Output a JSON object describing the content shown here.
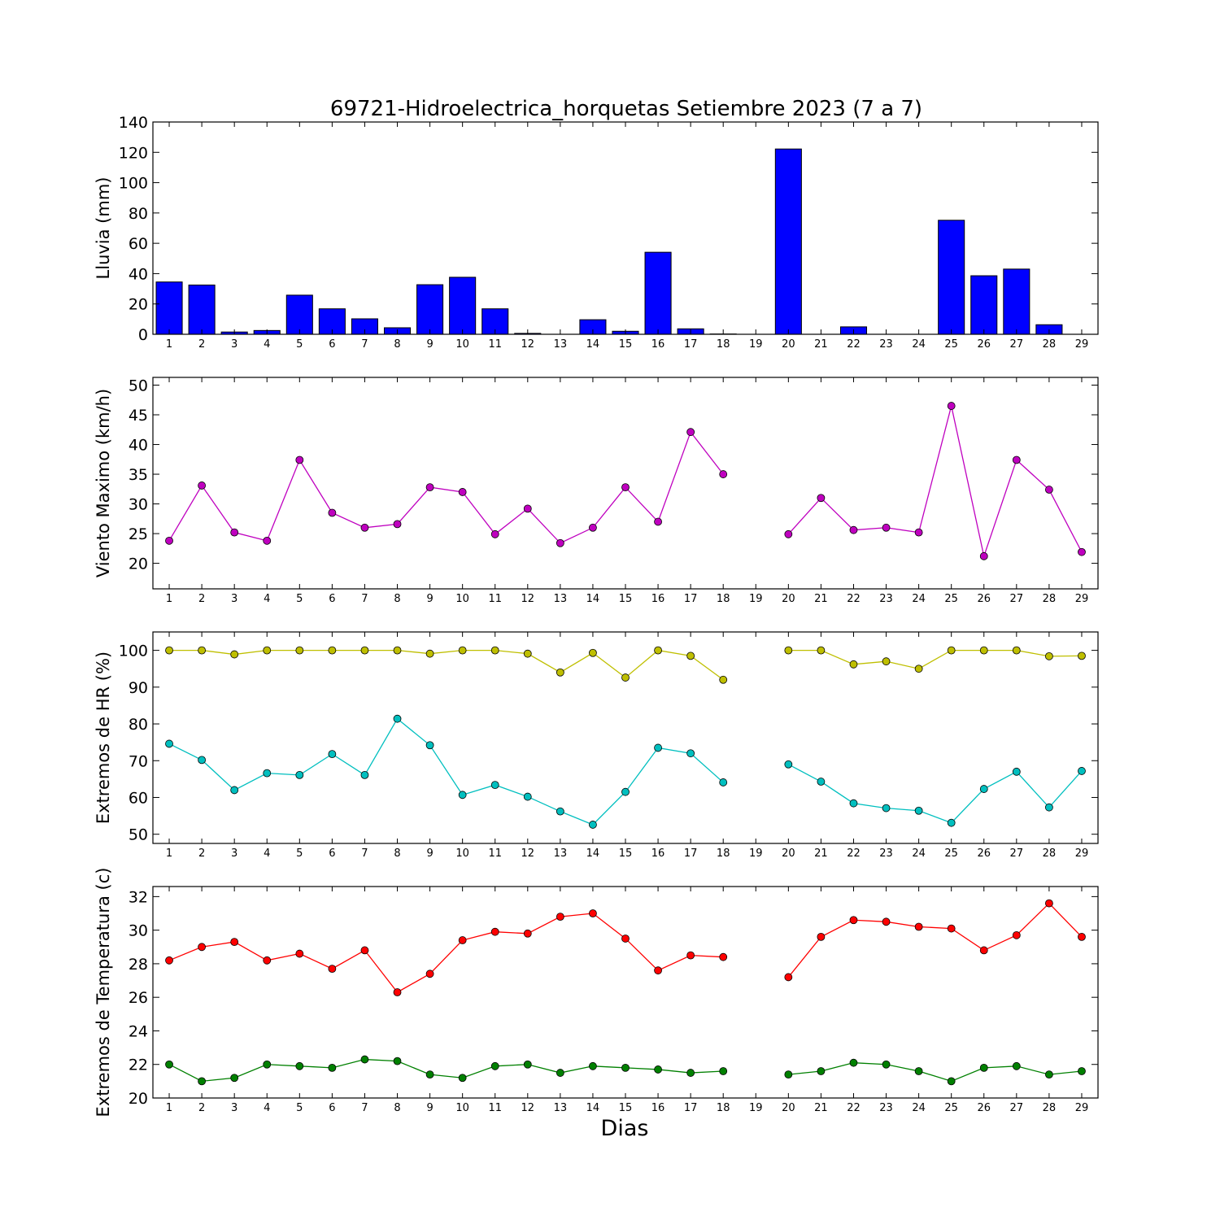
{
  "title": "69721-Hidroelectrica_horquetas Setiembre 2023  (7 a 7)",
  "xlabel": "Dias",
  "x_days": [
    1,
    2,
    3,
    4,
    5,
    6,
    7,
    8,
    9,
    10,
    11,
    12,
    13,
    14,
    15,
    16,
    17,
    18,
    19,
    20,
    21,
    22,
    23,
    24,
    25,
    26,
    27,
    28,
    29
  ],
  "chart_data": [
    {
      "type": "bar",
      "ylabel": "Lluvia (mm)",
      "ylim": [
        0,
        140
      ],
      "yticks": [
        0,
        20,
        40,
        60,
        80,
        100,
        120,
        140
      ],
      "categories": [
        1,
        2,
        3,
        4,
        5,
        6,
        7,
        8,
        9,
        10,
        11,
        12,
        13,
        14,
        15,
        16,
        17,
        18,
        19,
        20,
        21,
        22,
        23,
        24,
        25,
        26,
        27,
        28,
        29
      ],
      "series": [
        {
          "values": [
            34.5,
            32.5,
            1.5,
            2.5,
            25.8,
            16.8,
            10.2,
            4.3,
            32.7,
            37.6,
            16.8,
            0.6,
            0,
            9.6,
            2.0,
            54.1,
            3.6,
            0.2,
            0,
            122.2,
            0,
            4.9,
            0,
            0,
            75.2,
            38.6,
            43.0,
            6.3,
            0
          ],
          "color": "#0000ff"
        }
      ]
    },
    {
      "type": "line",
      "ylabel": "Viento Maximo (km/h)",
      "ylim": [
        15.7,
        51.3
      ],
      "yticks": [
        20,
        25,
        30,
        35,
        40,
        45,
        50
      ],
      "x": [
        1,
        2,
        3,
        4,
        5,
        6,
        7,
        8,
        9,
        10,
        11,
        12,
        13,
        14,
        15,
        16,
        17,
        18,
        19,
        20,
        21,
        22,
        23,
        24,
        25,
        26,
        27,
        28,
        29
      ],
      "series": [
        {
          "values": [
            23.8,
            33.1,
            25.2,
            23.8,
            37.4,
            28.5,
            26.0,
            26.6,
            32.8,
            32.0,
            24.9,
            29.2,
            23.4,
            26.0,
            32.8,
            27.0,
            42.1,
            35.0,
            null,
            24.9,
            31.0,
            25.6,
            26.0,
            25.2,
            46.5,
            21.2,
            37.4,
            32.4,
            21.9
          ],
          "color": "#bf00bf"
        }
      ]
    },
    {
      "type": "line",
      "ylabel": "Extremos de HR (%)",
      "ylim": [
        47.5,
        105
      ],
      "yticks": [
        50,
        60,
        70,
        80,
        90,
        100
      ],
      "x": [
        1,
        2,
        3,
        4,
        5,
        6,
        7,
        8,
        9,
        10,
        11,
        12,
        13,
        14,
        15,
        16,
        17,
        18,
        19,
        20,
        21,
        22,
        23,
        24,
        25,
        26,
        27,
        28,
        29
      ],
      "series": [
        {
          "values": [
            100,
            100,
            98.9,
            100,
            100,
            100,
            100,
            100,
            99.1,
            100,
            100,
            99.1,
            94.0,
            99.3,
            92.6,
            100,
            98.5,
            92.0,
            null,
            100,
            100,
            96.2,
            97.0,
            95.0,
            100,
            100,
            100,
            98.4,
            98.5
          ],
          "color": "#bfbf00"
        },
        {
          "values": [
            74.6,
            70.2,
            62.0,
            66.6,
            66.1,
            71.8,
            66.1,
            81.4,
            74.2,
            60.7,
            63.4,
            60.2,
            56.2,
            52.6,
            61.5,
            73.5,
            72.0,
            64.1,
            null,
            69.0,
            64.3,
            58.4,
            57.1,
            56.4,
            53.1,
            62.3,
            67.0,
            57.3,
            67.2
          ],
          "color": "#00bfbf"
        }
      ]
    },
    {
      "type": "line",
      "ylabel": "Extremos de Temperatura (c)",
      "ylim": [
        20,
        32.6
      ],
      "yticks": [
        20,
        22,
        24,
        26,
        28,
        30,
        32
      ],
      "x": [
        1,
        2,
        3,
        4,
        5,
        6,
        7,
        8,
        9,
        10,
        11,
        12,
        13,
        14,
        15,
        16,
        17,
        18,
        19,
        20,
        21,
        22,
        23,
        24,
        25,
        26,
        27,
        28,
        29
      ],
      "series": [
        {
          "values": [
            28.2,
            29.0,
            29.3,
            28.2,
            28.6,
            27.7,
            28.8,
            26.3,
            27.4,
            29.4,
            29.9,
            29.8,
            30.8,
            31.0,
            29.5,
            27.6,
            28.5,
            28.4,
            null,
            27.2,
            29.6,
            30.6,
            30.5,
            30.2,
            30.1,
            28.8,
            29.7,
            31.6,
            29.6
          ],
          "color": "#ff0000"
        },
        {
          "values": [
            22.0,
            21.0,
            21.2,
            22.0,
            21.9,
            21.8,
            22.3,
            22.2,
            21.4,
            21.2,
            21.9,
            22.0,
            21.5,
            21.9,
            21.8,
            21.7,
            21.5,
            21.6,
            null,
            21.4,
            21.6,
            22.1,
            22.0,
            21.6,
            21.0,
            21.8,
            21.9,
            21.4,
            21.6
          ],
          "color": "#008000"
        }
      ]
    }
  ]
}
